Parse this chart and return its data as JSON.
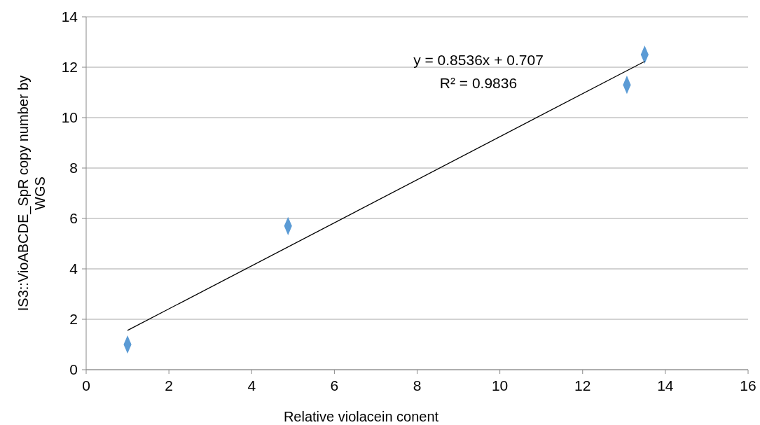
{
  "chart_data": {
    "type": "scatter",
    "xlabel": "Relative violacein conent",
    "ylabel": "IS3::VioABCDE_SpR copy number by WGS",
    "xlim": [
      0,
      16
    ],
    "xticks": [
      0,
      2,
      4,
      6,
      8,
      10,
      12,
      14,
      16
    ],
    "ylim": [
      0,
      14
    ],
    "yticks": [
      0,
      2,
      4,
      6,
      8,
      10,
      12,
      14
    ],
    "grid": "y",
    "marker": "diamond",
    "series": [
      {
        "color": "#5b9bd5",
        "x": [
          1.0,
          4.88,
          13.07,
          13.5
        ],
        "values": [
          1.0,
          5.7,
          11.3,
          12.5
        ]
      },
      {
        "type": "line",
        "color": "#000000",
        "x": [
          1,
          13.5
        ],
        "values": [
          1.56,
          12.23
        ],
        "marker": "none"
      }
    ],
    "annotations": [
      "y = 0.8536x + 0.707",
      "R² = 0.9836"
    ]
  }
}
